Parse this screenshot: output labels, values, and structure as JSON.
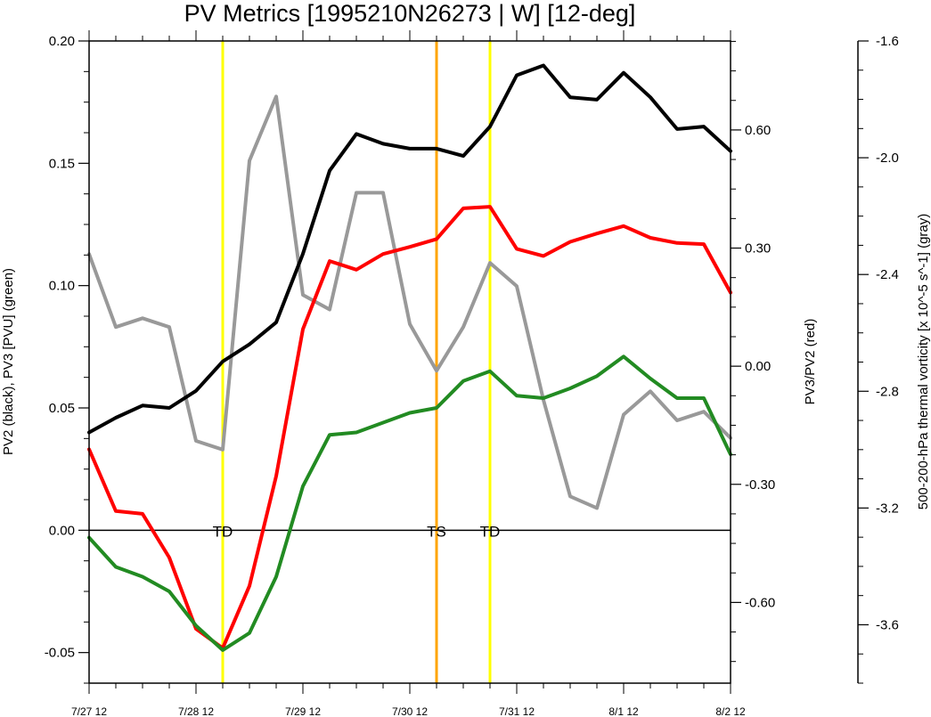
{
  "chart_data": {
    "type": "line",
    "title": "PV Metrics [1995210N26273 | W] [12-deg]",
    "ylabel_left": "PV2 (black), PV3 [PVU] (green)",
    "ylabel_right": "PV3/PV2 (red)",
    "ylabel_far_right": "500-200-hPa thermal vorticity [x 10^-5 s^-1] (gray)",
    "x_start": "7/27 12",
    "step_hours": 6,
    "x_ticks": [
      "7/27 12",
      "7/28 12",
      "7/29 12",
      "7/30 12",
      "7/31 12",
      "8/1 12",
      "8/2 12"
    ],
    "left_axis": {
      "ylim": [
        -0.0625,
        0.2
      ],
      "tick_values": [
        -0.05,
        0.0,
        0.05,
        0.1,
        0.15,
        0.2
      ],
      "tick_labels": [
        "-0.05",
        "0.00",
        "0.05",
        "0.10",
        "0.15",
        "0.20"
      ]
    },
    "right_axis": {
      "ylim": [
        -0.805,
        0.826
      ],
      "tick_values": [
        -0.6,
        -0.3,
        0.0,
        0.3,
        0.6
      ],
      "tick_labels": [
        "-0.60",
        "-0.30",
        "0.00",
        "0.30",
        "0.60"
      ]
    },
    "far_right_axis": {
      "ylim": [
        -3.8,
        -1.6
      ],
      "tick_values": [
        -1.6,
        -2.0,
        -2.4,
        -2.8,
        -3.2,
        -3.6
      ],
      "tick_labels": [
        "-1.6",
        "-2.0",
        "-2.4",
        "-2.8",
        "-3.2",
        "-3.6"
      ]
    },
    "series": [
      {
        "color": "#000000",
        "axis": "left",
        "values": [
          0.04,
          0.046,
          0.051,
          0.05,
          0.057,
          0.069,
          0.076,
          0.085,
          0.113,
          0.147,
          0.162,
          0.158,
          0.156,
          0.156,
          0.153,
          0.165,
          0.186,
          0.19,
          0.177,
          0.176,
          0.187,
          0.177,
          0.164,
          0.165,
          0.155
        ]
      },
      {
        "color": "#228b22",
        "axis": "left",
        "values": [
          -0.003,
          -0.015,
          -0.019,
          -0.025,
          -0.039,
          -0.049,
          -0.042,
          -0.019,
          0.018,
          0.039,
          0.04,
          0.044,
          0.048,
          0.05,
          0.061,
          0.065,
          0.055,
          0.054,
          0.058,
          0.063,
          0.071,
          0.062,
          0.054,
          0.054,
          0.031
        ]
      },
      {
        "color": "#ff0000",
        "axis": "right",
        "values": [
          -0.211,
          -0.368,
          -0.375,
          -0.486,
          -0.667,
          -0.716,
          -0.558,
          -0.279,
          0.094,
          0.267,
          0.245,
          0.285,
          0.303,
          0.323,
          0.401,
          0.405,
          0.298,
          0.28,
          0.316,
          0.337,
          0.356,
          0.326,
          0.313,
          0.31,
          0.187
        ]
      },
      {
        "color": "#999999",
        "axis": "far_right",
        "values": [
          -2.33,
          -2.58,
          -2.55,
          -2.58,
          -2.97,
          -3.0,
          -2.01,
          -1.79,
          -2.47,
          -2.52,
          -2.12,
          -2.12,
          -2.57,
          -2.73,
          -2.58,
          -2.36,
          -2.44,
          -2.83,
          -3.16,
          -3.2,
          -2.88,
          -2.8,
          -2.9,
          -2.87,
          -2.96
        ]
      }
    ],
    "reference_line": {
      "y": 0,
      "axis": "left",
      "color": "#000000"
    },
    "events": [
      {
        "label": "TD",
        "index": 5,
        "color": "#ffff00"
      },
      {
        "label": "TS",
        "index": 13,
        "color": "#ffa500"
      },
      {
        "label": "TD",
        "index": 15,
        "color": "#ffff00"
      }
    ]
  }
}
